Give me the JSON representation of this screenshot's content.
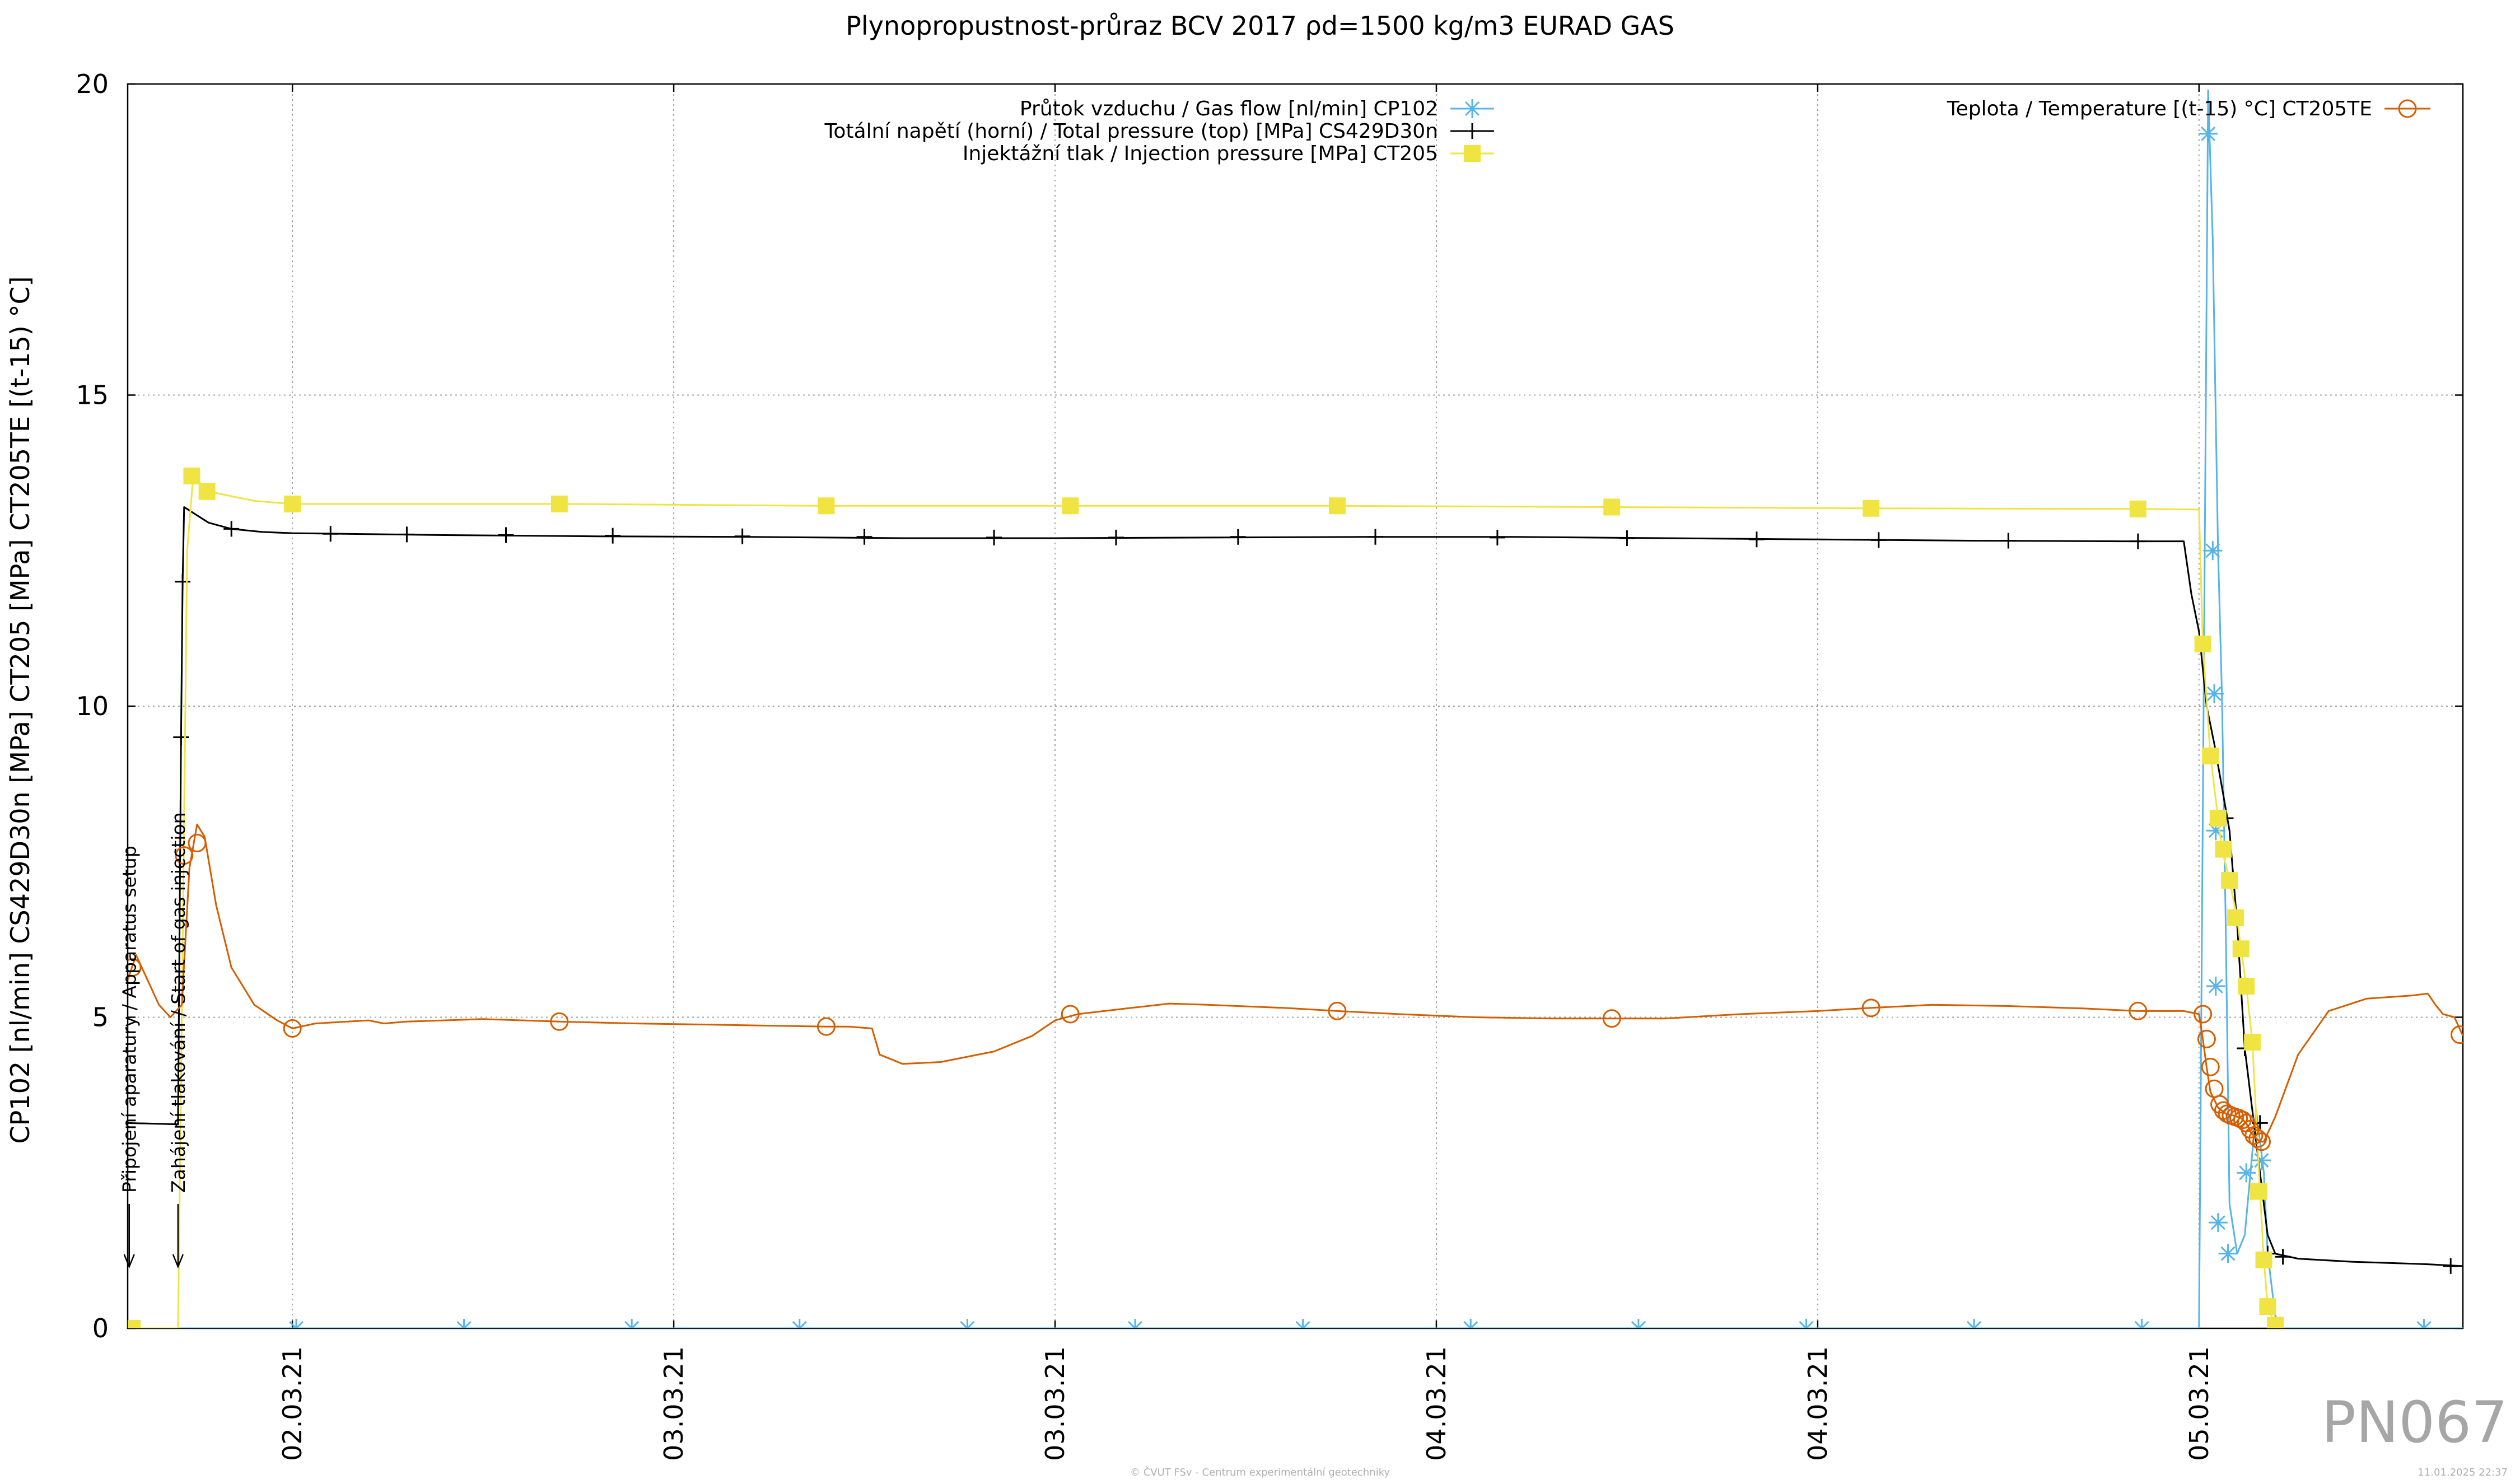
{
  "colors": {
    "gas_flow": "#56b4e9",
    "total_pressure": "#000000",
    "injection_pressure": "#f0e442",
    "temperature": "#d55e00"
  },
  "chart_data": {
    "type": "line",
    "title": "Plynopropustnost-průraz BCV 2017 ρd=1500 kg/m3 EURAD GAS",
    "ylabel": "CP102 [nl/min] CS429D30n [MPa] CT205 [MPa] CT205TE [(t-15) °C]",
    "xlabel": "",
    "ylim": [
      0,
      20
    ],
    "yticks": [
      0,
      5,
      10,
      15,
      20
    ],
    "y_tick_labels": [
      "0",
      "5",
      "10",
      "15",
      "20"
    ],
    "xlim": [
      -2.16,
      28.46
    ],
    "x_unit": "hours from 02.03.21 00:00",
    "xticks": [
      0,
      5,
      10,
      15,
      20,
      25
    ],
    "x_tick_labels": [
      "02.03.21",
      "03.03.21",
      "03.03.21",
      "04.03.21",
      "04.03.21",
      "05.03.21"
    ],
    "grid": true,
    "legend_left_placement": "top-center",
    "legend_right_placement": "top-right",
    "annotations": [
      {
        "text": "Připojení aparatury / Apparatus setup",
        "x": -2.14
      },
      {
        "text": "Zahájení tlakování / Start of gas injection",
        "x": -1.5
      }
    ],
    "watermark": "PN067",
    "footer_center": "© ČVUT FSv - Centrum experimentální geotechniky",
    "footer_right": "11.01.2025 22:37",
    "series": [
      {
        "name": "Průtok vzduchu / Gas flow [nl/min] CP102",
        "color": "#56b4e9",
        "marker": "asterisk",
        "points": [
          [
            -2.16,
            0
          ],
          [
            -1.55,
            0
          ],
          [
            -1.5,
            0
          ],
          [
            5,
            0
          ],
          [
            25.0,
            0
          ],
          [
            25.12,
            19.9
          ],
          [
            25.18,
            17.5
          ],
          [
            25.25,
            12.5
          ],
          [
            25.3,
            10.2
          ],
          [
            25.35,
            6.5
          ],
          [
            25.4,
            2.0
          ],
          [
            25.5,
            1.2
          ],
          [
            25.6,
            1.5
          ],
          [
            25.75,
            3.5
          ],
          [
            25.85,
            2.5
          ],
          [
            25.9,
            1.2
          ],
          [
            26.0,
            0.2
          ],
          [
            26.1,
            0
          ],
          [
            28.46,
            0
          ]
        ],
        "marker_points": [
          [
            0.05,
            0
          ],
          [
            2.25,
            0
          ],
          [
            4.45,
            0
          ],
          [
            6.65,
            0
          ],
          [
            8.85,
            0
          ],
          [
            11.05,
            0
          ],
          [
            13.25,
            0
          ],
          [
            15.45,
            0
          ],
          [
            17.65,
            0
          ],
          [
            19.85,
            0
          ],
          [
            22.05,
            0
          ],
          [
            24.25,
            0
          ],
          [
            25.12,
            19.2
          ],
          [
            25.18,
            12.5
          ],
          [
            25.2,
            10.2
          ],
          [
            25.22,
            8.0
          ],
          [
            25.22,
            5.5
          ],
          [
            25.25,
            1.7
          ],
          [
            25.38,
            1.2
          ],
          [
            25.62,
            2.5
          ],
          [
            25.82,
            2.7
          ],
          [
            27.95,
            0
          ]
        ]
      },
      {
        "name": "Totální napětí (horní) / Total pressure (top) [MPa] CS429D30n",
        "color": "#000000",
        "marker": "plus",
        "points": [
          [
            -2.16,
            3.3
          ],
          [
            -1.52,
            3.28
          ],
          [
            -1.5,
            3.28
          ],
          [
            -1.46,
            9.5
          ],
          [
            -1.44,
            12.0
          ],
          [
            -1.42,
            13.2
          ],
          [
            -1.1,
            12.95
          ],
          [
            -0.8,
            12.85
          ],
          [
            -0.4,
            12.8
          ],
          [
            0,
            12.78
          ],
          [
            2,
            12.75
          ],
          [
            4,
            12.73
          ],
          [
            6,
            12.72
          ],
          [
            8,
            12.7
          ],
          [
            10,
            12.7
          ],
          [
            12,
            12.71
          ],
          [
            14,
            12.72
          ],
          [
            16,
            12.72
          ],
          [
            18,
            12.7
          ],
          [
            20,
            12.68
          ],
          [
            22,
            12.66
          ],
          [
            24,
            12.65
          ],
          [
            24.8,
            12.65
          ],
          [
            24.9,
            11.8
          ],
          [
            25.0,
            11.2
          ],
          [
            25.1,
            10.0
          ],
          [
            25.2,
            9.4
          ],
          [
            25.3,
            8.7
          ],
          [
            25.4,
            8.0
          ],
          [
            25.5,
            6.5
          ],
          [
            25.6,
            4.5
          ],
          [
            25.7,
            3.5
          ],
          [
            25.8,
            2.5
          ],
          [
            25.9,
            1.5
          ],
          [
            26.0,
            1.2
          ],
          [
            26.3,
            1.12
          ],
          [
            27,
            1.07
          ],
          [
            28,
            1.03
          ],
          [
            28.46,
            1.0
          ]
        ],
        "marker_points": [
          [
            -1.46,
            9.5
          ],
          [
            -1.44,
            12.0
          ],
          [
            -0.8,
            12.85
          ],
          [
            0.5,
            12.77
          ],
          [
            1.5,
            12.76
          ],
          [
            2.8,
            12.75
          ],
          [
            4.2,
            12.74
          ],
          [
            5.9,
            12.73
          ],
          [
            7.5,
            12.72
          ],
          [
            9.2,
            12.71
          ],
          [
            10.8,
            12.71
          ],
          [
            12.4,
            12.72
          ],
          [
            14.2,
            12.72
          ],
          [
            15.8,
            12.71
          ],
          [
            17.5,
            12.7
          ],
          [
            19.2,
            12.68
          ],
          [
            20.8,
            12.67
          ],
          [
            22.5,
            12.66
          ],
          [
            24.2,
            12.65
          ],
          [
            25.35,
            8.2
          ],
          [
            25.6,
            4.5
          ],
          [
            25.8,
            3.3
          ],
          [
            25.9,
            1.2
          ],
          [
            26.1,
            1.15
          ],
          [
            28.3,
            1.0
          ]
        ]
      },
      {
        "name": "Injektážní tlak / Injection pressure [MPa] CT205",
        "color": "#f0e442",
        "marker": "square",
        "points": [
          [
            -2.16,
            0
          ],
          [
            -1.5,
            0
          ],
          [
            -1.45,
            5
          ],
          [
            -1.38,
            12.5
          ],
          [
            -1.3,
            13.7
          ],
          [
            -1.1,
            13.45
          ],
          [
            -0.5,
            13.3
          ],
          [
            0,
            13.25
          ],
          [
            3.5,
            13.25
          ],
          [
            7,
            13.22
          ],
          [
            10.2,
            13.22
          ],
          [
            13.7,
            13.22
          ],
          [
            17.3,
            13.2
          ],
          [
            20.7,
            13.18
          ],
          [
            24.2,
            13.17
          ],
          [
            25.0,
            13.16
          ],
          [
            25.05,
            11.0
          ],
          [
            25.15,
            9.2
          ],
          [
            25.25,
            8.2
          ],
          [
            25.3,
            7.7
          ],
          [
            25.4,
            7.2
          ],
          [
            25.5,
            6.6
          ],
          [
            25.55,
            6.1
          ],
          [
            25.62,
            5.5
          ],
          [
            25.7,
            4.6
          ],
          [
            25.8,
            2.2
          ],
          [
            25.85,
            1.1
          ],
          [
            25.9,
            0.35
          ],
          [
            26.0,
            0.05
          ],
          [
            26.05,
            0
          ]
        ],
        "marker_points": [
          [
            -2.1,
            0
          ],
          [
            -1.32,
            13.7
          ],
          [
            -1.12,
            13.45
          ],
          [
            0,
            13.25
          ],
          [
            3.5,
            13.25
          ],
          [
            7,
            13.22
          ],
          [
            10.2,
            13.22
          ],
          [
            13.7,
            13.22
          ],
          [
            17.3,
            13.2
          ],
          [
            20.7,
            13.18
          ],
          [
            24.2,
            13.17
          ],
          [
            25.05,
            11.0
          ],
          [
            25.15,
            9.2
          ],
          [
            25.25,
            8.2
          ],
          [
            25.32,
            7.7
          ],
          [
            25.4,
            7.2
          ],
          [
            25.48,
            6.6
          ],
          [
            25.55,
            6.1
          ],
          [
            25.62,
            5.5
          ],
          [
            25.7,
            4.6
          ],
          [
            25.78,
            2.2
          ],
          [
            25.85,
            1.1
          ],
          [
            25.9,
            0.35
          ],
          [
            26.0,
            0.05
          ]
        ]
      },
      {
        "name": "Teplota / Temperature [(t-15) °C] CT205TE",
        "color": "#d55e00",
        "marker": "circle",
        "points": [
          [
            -2.16,
            5.6
          ],
          [
            -2.05,
            6.0
          ],
          [
            -1.9,
            5.6
          ],
          [
            -1.75,
            5.2
          ],
          [
            -1.6,
            5.0
          ],
          [
            -1.45,
            5.2
          ],
          [
            -1.35,
            7.4
          ],
          [
            -1.25,
            8.1
          ],
          [
            -1.15,
            7.9
          ],
          [
            -1.0,
            6.8
          ],
          [
            -0.8,
            5.8
          ],
          [
            -0.5,
            5.2
          ],
          [
            -0.2,
            4.95
          ],
          [
            0,
            4.82
          ],
          [
            0.3,
            4.9
          ],
          [
            1.0,
            4.95
          ],
          [
            1.2,
            4.9
          ],
          [
            1.5,
            4.93
          ],
          [
            2.5,
            4.97
          ],
          [
            3.5,
            4.93
          ],
          [
            4.5,
            4.9
          ],
          [
            5.5,
            4.88
          ],
          [
            6.5,
            4.86
          ],
          [
            7.0,
            4.85
          ],
          [
            7.3,
            4.85
          ],
          [
            7.6,
            4.82
          ],
          [
            7.7,
            4.4
          ],
          [
            8.0,
            4.25
          ],
          [
            8.5,
            4.28
          ],
          [
            9.2,
            4.45
          ],
          [
            9.7,
            4.7
          ],
          [
            10.0,
            4.95
          ],
          [
            10.3,
            5.05
          ],
          [
            11.0,
            5.15
          ],
          [
            11.5,
            5.22
          ],
          [
            12.0,
            5.2
          ],
          [
            13.0,
            5.15
          ],
          [
            13.7,
            5.1
          ],
          [
            14.5,
            5.05
          ],
          [
            15.5,
            5.0
          ],
          [
            16.5,
            4.98
          ],
          [
            17.3,
            4.98
          ],
          [
            18.0,
            4.98
          ],
          [
            19.0,
            5.05
          ],
          [
            20.0,
            5.1
          ],
          [
            20.7,
            5.15
          ],
          [
            21.5,
            5.2
          ],
          [
            22.5,
            5.18
          ],
          [
            23.5,
            5.14
          ],
          [
            24.2,
            5.1
          ],
          [
            24.8,
            5.1
          ],
          [
            25.0,
            5.05
          ],
          [
            25.05,
            4.65
          ],
          [
            25.1,
            4.2
          ],
          [
            25.15,
            3.8
          ],
          [
            25.25,
            3.55
          ],
          [
            25.35,
            3.45
          ],
          [
            25.45,
            3.42
          ],
          [
            25.55,
            3.38
          ],
          [
            25.62,
            3.3
          ],
          [
            25.68,
            3.15
          ],
          [
            25.75,
            3.05
          ],
          [
            25.8,
            3.0
          ],
          [
            25.85,
            3.0
          ],
          [
            26.0,
            3.4
          ],
          [
            26.3,
            4.4
          ],
          [
            26.7,
            5.1
          ],
          [
            27.2,
            5.3
          ],
          [
            27.8,
            5.35
          ],
          [
            28.0,
            5.38
          ],
          [
            28.1,
            5.2
          ],
          [
            28.2,
            5.05
          ],
          [
            28.35,
            5.0
          ],
          [
            28.46,
            4.7
          ]
        ],
        "marker_points": [
          [
            -2.1,
            5.8
          ],
          [
            -1.42,
            7.6
          ],
          [
            -1.25,
            7.8
          ],
          [
            0,
            4.82
          ],
          [
            3.5,
            4.93
          ],
          [
            7,
            4.85
          ],
          [
            10.2,
            5.05
          ],
          [
            13.7,
            5.1
          ],
          [
            17.3,
            4.98
          ],
          [
            20.7,
            5.15
          ],
          [
            24.2,
            5.1
          ],
          [
            25.05,
            5.05
          ],
          [
            25.1,
            4.65
          ],
          [
            25.15,
            4.2
          ],
          [
            25.2,
            3.85
          ],
          [
            25.27,
            3.6
          ],
          [
            25.32,
            3.5
          ],
          [
            25.37,
            3.45
          ],
          [
            25.42,
            3.42
          ],
          [
            25.47,
            3.4
          ],
          [
            25.52,
            3.38
          ],
          [
            25.57,
            3.35
          ],
          [
            25.62,
            3.3
          ],
          [
            25.67,
            3.2
          ],
          [
            25.72,
            3.1
          ],
          [
            25.77,
            3.05
          ],
          [
            25.82,
            3.0
          ],
          [
            28.42,
            4.72
          ]
        ]
      }
    ]
  }
}
